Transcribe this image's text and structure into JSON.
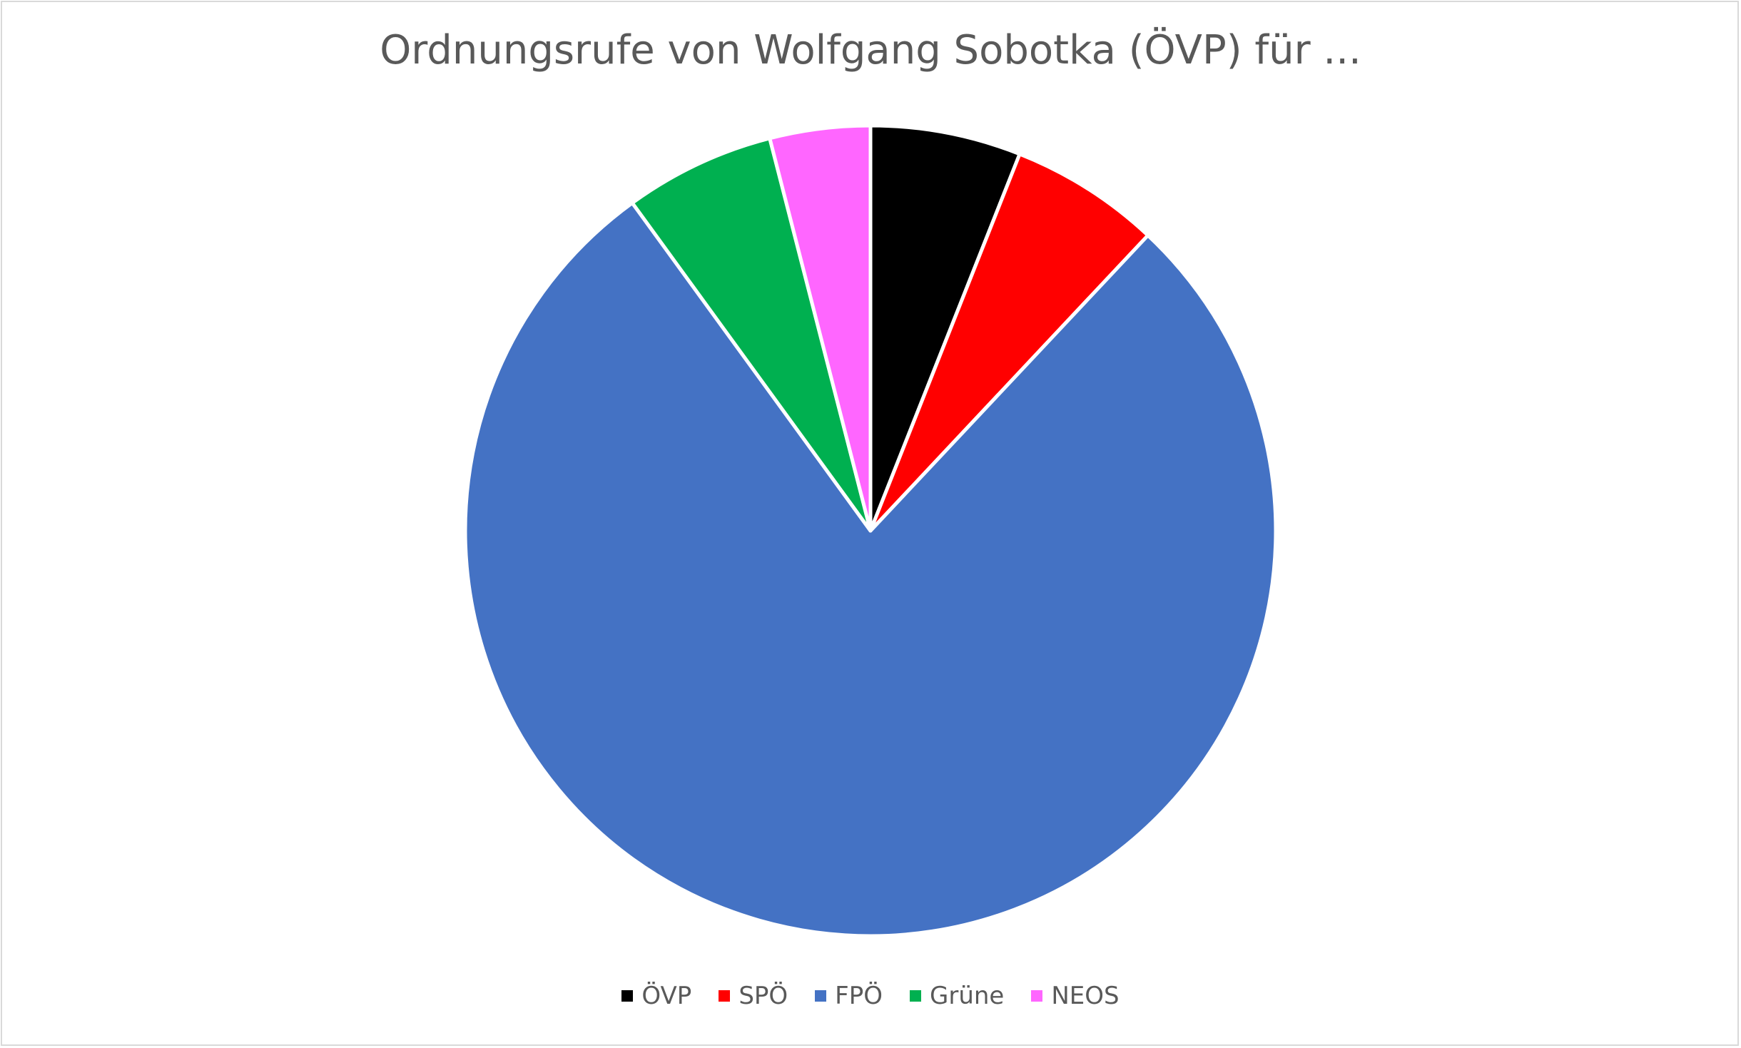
{
  "chart_data": {
    "type": "pie",
    "title": "Ordnungsrufe von Wolfgang Sobotka (ÖVP) für ...",
    "categories": [
      "ÖVP",
      "SPÖ",
      "FPÖ",
      "Grüne",
      "NEOS"
    ],
    "values": [
      6,
      6,
      78,
      6,
      4
    ],
    "colors": [
      "#000000",
      "#ff0000",
      "#4472c4",
      "#00b050",
      "#ff66ff"
    ],
    "start_angle_deg": 0,
    "direction": "clockwise",
    "legend_position": "bottom"
  }
}
